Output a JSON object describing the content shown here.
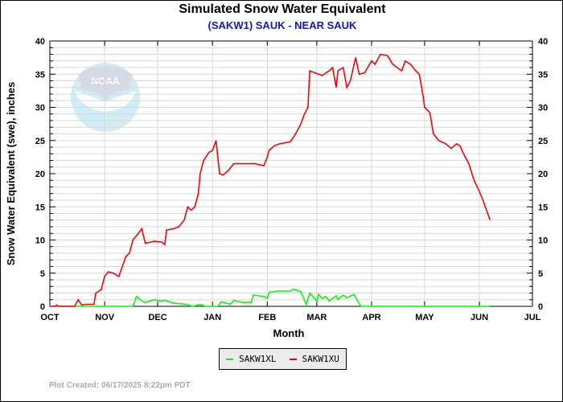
{
  "title": "Simulated Snow Water Equivalent",
  "subtitle": "(SAKW1) SAUK - NEAR SAUK",
  "credit": "Plot Created: 06/17/2025 8:22pm PDT",
  "logo_text": "NOAA",
  "chart_data": {
    "type": "line",
    "xlabel": "Month",
    "ylabel": "Snow Water Equivalent (swe),  inches",
    "xlim": [
      "2024-10-01",
      "2025-07-01"
    ],
    "ylim": [
      0,
      40
    ],
    "x_ticks": [
      "OCT",
      "NOV",
      "DEC",
      "JAN",
      "FEB",
      "MAR",
      "APR",
      "MAY",
      "JUN",
      "JUL"
    ],
    "x_tick_dates": [
      "2024-10-01",
      "2024-11-01",
      "2024-12-01",
      "2025-01-01",
      "2025-02-01",
      "2025-03-01",
      "2025-04-01",
      "2025-05-01",
      "2025-06-01",
      "2025-07-01"
    ],
    "y_ticks": [
      0,
      5,
      10,
      15,
      20,
      25,
      30,
      35,
      40
    ],
    "grid": true,
    "legend_placement": "bottom",
    "series": [
      {
        "name": "SAKW1XL",
        "color": "#00ff00",
        "points": [
          [
            "2024-10-01",
            0
          ],
          [
            "2024-11-17",
            0
          ],
          [
            "2024-11-19",
            1.5
          ],
          [
            "2024-11-22",
            0.8
          ],
          [
            "2024-11-24",
            0.6
          ],
          [
            "2024-11-29",
            1.0
          ],
          [
            "2024-12-03",
            0.8
          ],
          [
            "2024-12-05",
            0.9
          ],
          [
            "2024-12-10",
            0.5
          ],
          [
            "2024-12-17",
            0.3
          ],
          [
            "2024-12-21",
            0
          ],
          [
            "2024-12-25",
            0.3
          ],
          [
            "2024-12-28",
            0
          ],
          [
            "2025-01-04",
            0
          ],
          [
            "2025-01-06",
            0.7
          ],
          [
            "2025-01-11",
            0.3
          ],
          [
            "2025-01-13",
            0.9
          ],
          [
            "2025-01-18",
            0.6
          ],
          [
            "2025-01-23",
            0.6
          ],
          [
            "2025-01-24",
            1.7
          ],
          [
            "2025-01-30",
            1.5
          ],
          [
            "2025-02-01",
            1.2
          ],
          [
            "2025-02-02",
            2.1
          ],
          [
            "2025-02-07",
            2.3
          ],
          [
            "2025-02-14",
            2.3
          ],
          [
            "2025-02-16",
            2.6
          ],
          [
            "2025-02-20",
            2.2
          ],
          [
            "2025-02-23",
            0.3
          ],
          [
            "2025-02-25",
            2.0
          ],
          [
            "2025-03-01",
            0.8
          ],
          [
            "2025-03-02",
            1.8
          ],
          [
            "2025-03-04",
            1.2
          ],
          [
            "2025-03-06",
            1.5
          ],
          [
            "2025-03-08",
            0.8
          ],
          [
            "2025-03-12",
            1.6
          ],
          [
            "2025-03-13",
            1.0
          ],
          [
            "2025-03-16",
            1.7
          ],
          [
            "2025-03-18",
            1.3
          ],
          [
            "2025-03-22",
            1.8
          ],
          [
            "2025-03-26",
            0
          ],
          [
            "2025-06-07",
            0
          ]
        ]
      },
      {
        "name": "SAKW1XU",
        "color": "#ff0000",
        "points": [
          [
            "2024-10-01",
            0
          ],
          [
            "2024-10-04",
            0
          ],
          [
            "2024-10-05",
            0.2
          ],
          [
            "2024-10-06",
            0
          ],
          [
            "2024-10-15",
            0
          ],
          [
            "2024-10-17",
            1.0
          ],
          [
            "2024-10-19",
            0.2
          ],
          [
            "2024-10-21",
            0.3
          ],
          [
            "2024-10-26",
            0.3
          ],
          [
            "2024-10-27",
            2.0
          ],
          [
            "2024-10-30",
            2.5
          ],
          [
            "2024-11-01",
            4.5
          ],
          [
            "2024-11-03",
            5.2
          ],
          [
            "2024-11-06",
            5.0
          ],
          [
            "2024-11-09",
            4.5
          ],
          [
            "2024-11-11",
            6.0
          ],
          [
            "2024-11-13",
            7.5
          ],
          [
            "2024-11-15",
            8.0
          ],
          [
            "2024-11-17",
            10.0
          ],
          [
            "2024-11-20",
            11.0
          ],
          [
            "2024-11-22",
            11.7
          ],
          [
            "2024-11-24",
            9.5
          ],
          [
            "2024-11-29",
            9.8
          ],
          [
            "2024-12-03",
            9.7
          ],
          [
            "2024-12-05",
            9.3
          ],
          [
            "2024-12-06",
            11.5
          ],
          [
            "2024-12-10",
            11.7
          ],
          [
            "2024-12-13",
            12.0
          ],
          [
            "2024-12-16",
            13.0
          ],
          [
            "2024-12-18",
            15.0
          ],
          [
            "2024-12-20",
            14.5
          ],
          [
            "2024-12-22",
            15.0
          ],
          [
            "2024-12-24",
            17.0
          ],
          [
            "2024-12-25",
            20.0
          ],
          [
            "2024-12-27",
            22.0
          ],
          [
            "2024-12-30",
            23.2
          ],
          [
            "2025-01-01",
            23.5
          ],
          [
            "2025-01-03",
            25.0
          ],
          [
            "2025-01-05",
            20.0
          ],
          [
            "2025-01-07",
            19.8
          ],
          [
            "2025-01-10",
            20.5
          ],
          [
            "2025-01-13",
            21.5
          ],
          [
            "2025-01-18",
            21.5
          ],
          [
            "2025-01-25",
            21.5
          ],
          [
            "2025-01-30",
            21.2
          ],
          [
            "2025-02-01",
            22.5
          ],
          [
            "2025-02-02",
            23.5
          ],
          [
            "2025-02-05",
            24.2
          ],
          [
            "2025-02-08",
            24.5
          ],
          [
            "2025-02-14",
            24.8
          ],
          [
            "2025-02-17",
            26.0
          ],
          [
            "2025-02-20",
            27.5
          ],
          [
            "2025-02-22",
            29.0
          ],
          [
            "2025-02-24",
            30.0
          ],
          [
            "2025-02-25",
            35.5
          ],
          [
            "2025-02-28",
            35.2
          ],
          [
            "2025-03-02",
            35.0
          ],
          [
            "2025-03-04",
            34.8
          ],
          [
            "2025-03-08",
            35.5
          ],
          [
            "2025-03-10",
            36.0
          ],
          [
            "2025-03-12",
            33.0
          ],
          [
            "2025-03-13",
            35.5
          ],
          [
            "2025-03-16",
            36.0
          ],
          [
            "2025-03-18",
            33.0
          ],
          [
            "2025-03-20",
            34.0
          ],
          [
            "2025-03-23",
            37.5
          ],
          [
            "2025-03-25",
            35.0
          ],
          [
            "2025-03-28",
            35.2
          ],
          [
            "2025-04-01",
            37.0
          ],
          [
            "2025-04-03",
            36.5
          ],
          [
            "2025-04-06",
            38.0
          ],
          [
            "2025-04-10",
            37.8
          ],
          [
            "2025-04-13",
            36.5
          ],
          [
            "2025-04-18",
            35.5
          ],
          [
            "2025-04-20",
            37.0
          ],
          [
            "2025-04-23",
            36.5
          ],
          [
            "2025-04-26",
            35.5
          ],
          [
            "2025-04-28",
            35.0
          ],
          [
            "2025-04-30",
            32.0
          ],
          [
            "2025-05-01",
            30.0
          ],
          [
            "2025-05-04",
            29.2
          ],
          [
            "2025-05-06",
            26.0
          ],
          [
            "2025-05-09",
            25.0
          ],
          [
            "2025-05-13",
            24.5
          ],
          [
            "2025-05-16",
            23.8
          ],
          [
            "2025-05-19",
            24.5
          ],
          [
            "2025-05-21",
            24.2
          ],
          [
            "2025-05-23",
            23.0
          ],
          [
            "2025-05-26",
            21.5
          ],
          [
            "2025-05-29",
            19.0
          ],
          [
            "2025-06-01",
            17.3
          ],
          [
            "2025-06-03",
            16.0
          ],
          [
            "2025-06-05",
            14.5
          ],
          [
            "2025-06-07",
            13.0
          ]
        ]
      }
    ]
  }
}
